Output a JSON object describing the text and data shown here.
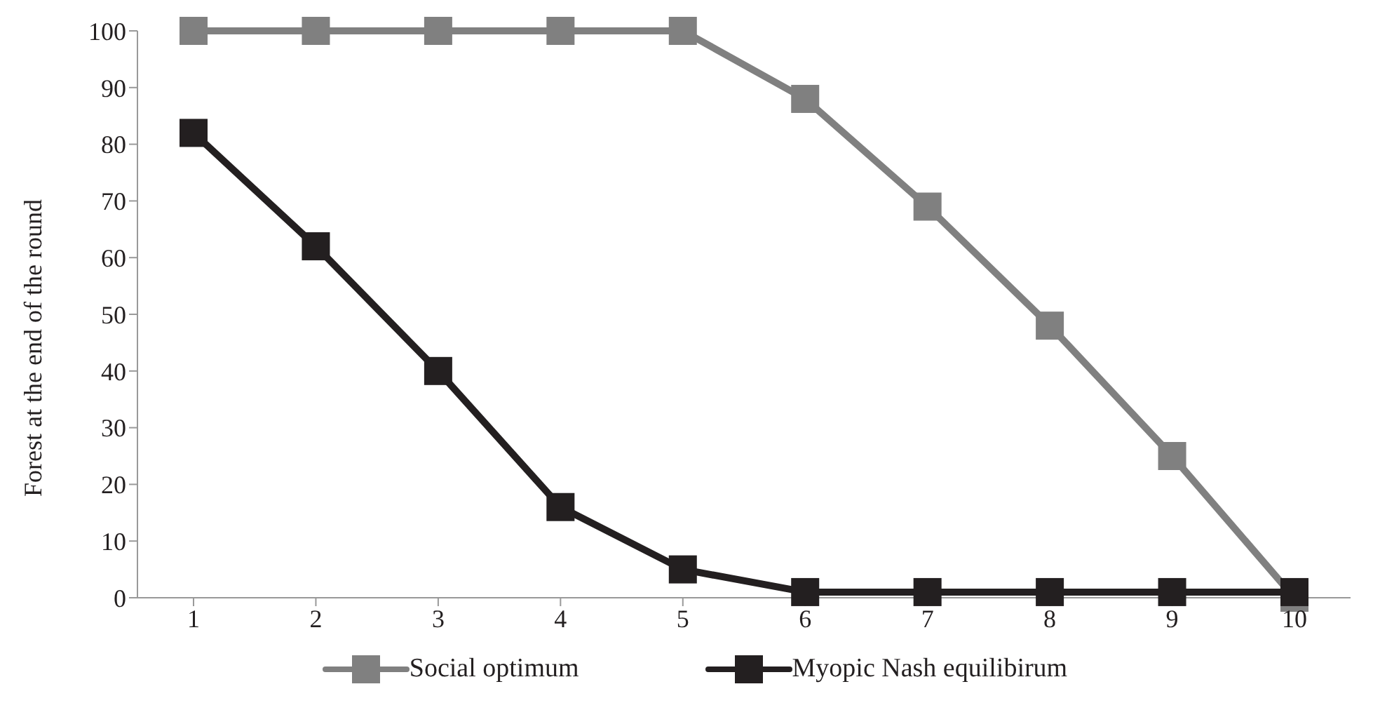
{
  "chart_data": {
    "type": "line",
    "ylabel": "Forest at the end of the round",
    "categories": [
      "1",
      "2",
      "3",
      "4",
      "5",
      "6",
      "7",
      "8",
      "9",
      "10"
    ],
    "series": [
      {
        "name": "Social optimum",
        "color": "#808080",
        "values": [
          100,
          100,
          100,
          100,
          100,
          88,
          69,
          48,
          25,
          0
        ]
      },
      {
        "name": "Myopic Nash equilibirum",
        "color": "#231f20",
        "values": [
          82,
          62,
          40,
          16,
          5,
          1,
          1,
          1,
          1,
          1
        ]
      }
    ],
    "ylim": [
      0,
      100
    ],
    "yticks": [
      0,
      10,
      20,
      30,
      40,
      50,
      60,
      70,
      80,
      90,
      100
    ],
    "grid": false,
    "legend": "bottom",
    "marker": "square",
    "line_style": "solid"
  }
}
